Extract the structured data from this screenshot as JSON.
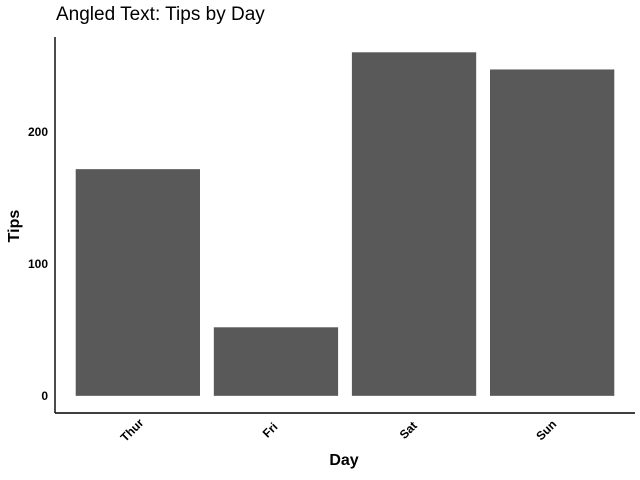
{
  "chart_data": {
    "type": "bar",
    "title": "Angled Text: Tips by Day",
    "xlabel": "Day",
    "ylabel": "Tips",
    "categories": [
      "Thur",
      "Fri",
      "Sat",
      "Sun"
    ],
    "values": [
      171.83,
      51.96,
      260.4,
      247.39
    ],
    "yticks": [
      0,
      100,
      200
    ],
    "ylim": [
      -13,
      272
    ],
    "x_tick_rotation": -45,
    "grid": false,
    "legend": "none",
    "bar_color": "#595959"
  }
}
